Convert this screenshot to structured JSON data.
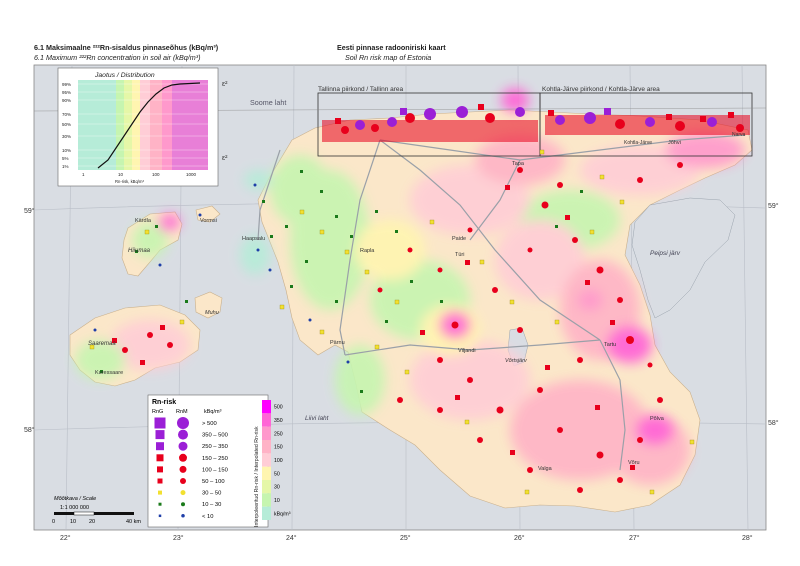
{
  "header": {
    "left_title": "6.1 Maksimaalne ²²²Rn-sisaldus pinnaseõhus (kBq/m³)",
    "left_subtitle": "6.1 Maximum ²²²Rn concentration in soil air (kBq/m³)",
    "right_title": "Eesti pinnase radooniriski kaart",
    "right_subtitle": "Soil Rn risk map of Estonia"
  },
  "distribution_inset": {
    "title": "Jaotus / Distribution",
    "y_ticks": [
      "99%",
      "95%",
      "90%",
      "70%",
      "50%",
      "30%",
      "10%",
      "5%",
      "1%"
    ],
    "x_ticks": [
      "1",
      "10",
      "100",
      "1000"
    ],
    "x_label": "Rn-risk, kBq/m³",
    "sigma_top": "ε²",
    "sigma_bottom": "ε²"
  },
  "areas": {
    "tallinn": "Tallinna piirkond / Tallinn area",
    "kohtla": "Kohtla-Järve piirkond / Kohtla-Järve area"
  },
  "places": {
    "soome_laht": "Soome laht",
    "tapa": "Tapa",
    "kardla": "Kärdla",
    "vormsi": "Vormsi",
    "haapsalu": "Haapsalu",
    "hiiumaa": "Hiiumaa",
    "muhu": "Muhu",
    "saaremaa": "Saaremaa",
    "kuressaare": "Kuressaare",
    "paide": "Paide",
    "turi": "Türi",
    "rapla": "Rapla",
    "parnu": "Pärnu",
    "viljandi": "Viljandi",
    "vortsjarv": "Võrtsjärv",
    "tartu": "Tartu",
    "peipsi": "Peipsi järv",
    "liivi_laht": "Liivi laht",
    "polva": "Põlva",
    "voru": "Võru",
    "valga": "Valga",
    "johvi": "Jõhvi",
    "kohtla_small": "Kohtla-Järve",
    "narva": "Narva"
  },
  "degrees": {
    "lat_59_left": "59°",
    "lat_59_right": "59°",
    "lat_58_left": "58°",
    "lat_58_right": "58°",
    "lon": [
      "22°",
      "23°",
      "24°",
      "25°",
      "26°",
      "27°",
      "28°"
    ]
  },
  "legend": {
    "title": "Rn-risk",
    "col_rng": "RnG",
    "col_rnm": "RnM",
    "col_unit": "kBq/m³",
    "classes": [
      "> 500",
      "350 – 500",
      "250 – 350",
      "150 – 250",
      "100 – 150",
      "50 – 100",
      "30 – 50",
      "10 – 30",
      "< 10"
    ],
    "colors": [
      "#9b1fd6",
      "#9b1fd6",
      "#9b1fd6",
      "#e8001c",
      "#e8001c",
      "#e8001c",
      "#f2e030",
      "#1a7a1a",
      "#1f3fa8"
    ],
    "vertical_label": "Interpoleeritud Rn-risk / Interpolated Rn-risk",
    "colorbar_ticks": [
      "500",
      "350",
      "250",
      "150",
      "100",
      "50",
      "30",
      "10",
      "kBq/m³"
    ],
    "colorbar_colors": [
      "#ff00ff",
      "#ff66d6",
      "#ff99cc",
      "#ffb3c6",
      "#ffcdd6",
      "#fff5b0",
      "#e5f7a8",
      "#c6f5b0",
      "#b6ecd8"
    ]
  },
  "scale": {
    "label": "Mõõtkava / Scale",
    "ratio": "1:1 000 000",
    "ticks": [
      "0",
      "10",
      "20",
      "40 km"
    ]
  }
}
